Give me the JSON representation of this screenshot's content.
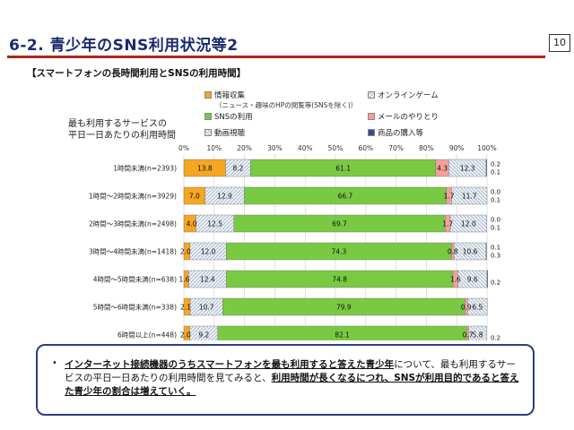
{
  "page": {
    "title": "6-2. 青少年のSNS利用状況等2",
    "number": "10"
  },
  "chart_title": "【スマートフォンの長時間利用とSNSの利用時間】",
  "colors": {
    "info": "#f5a623",
    "game": "#dfe8f2",
    "sns": "#7ac943",
    "mail": "#f4a09a",
    "video": "#dde6ee",
    "shop": "#2e4f8c",
    "title_rule": "#b0241c",
    "box_border": "#2c3f7a"
  },
  "note": {
    "bullet": "•",
    "part1": "インターネット接続機器のうちスマートフォンを最も利用すると答えた青少年",
    "part2": "について、最も利用するサービスの平日一日あたりの利用時間を見てみると、",
    "part3": "利用時間が長くなるにつれ、SNSが利用目的であると答えた青少年の割合は増えていく。"
  },
  "chart_data": {
    "type": "bar",
    "orientation": "horizontal-stacked-100",
    "title": "【スマートフォンの長時間利用とSNSの利用時間】",
    "ylabel": "最も利用するサービスの\n平日一日あたりの利用時間",
    "xlim": [
      0,
      100
    ],
    "xticks": [
      "0%",
      "10%",
      "20%",
      "30%",
      "40%",
      "50%",
      "60%",
      "70%",
      "80%",
      "90%",
      "100%"
    ],
    "grid": true,
    "legend_position": "top",
    "legend": {
      "info": "情報収集",
      "info_note": "（ニュース・趣味のHPの閲覧等(SNSを除く)）",
      "game": "オンラインゲーム",
      "sns": "SNSの利用",
      "mail": "メールのやりとり",
      "video": "動画視聴",
      "shop": "商品の購入等"
    },
    "categories": [
      "1時間未満(n=2393)",
      "1時間～2時間未満(n=3929)",
      "2時間～3時間未満(n=2498)",
      "3時間～4時間未満(n=1418)",
      "4時間～5時間未満(n=638)",
      "5時間～6時間未満(n=338)",
      "6時間以上(n=448)"
    ],
    "series": [
      {
        "key": "info",
        "name": "情報収集",
        "values": [
          13.8,
          7.0,
          4.0,
          2.0,
          1.6,
          2.1,
          2.0
        ]
      },
      {
        "key": "video",
        "name": "動画視聴",
        "values": [
          8.2,
          12.9,
          12.5,
          12.0,
          12.4,
          10.7,
          9.2
        ]
      },
      {
        "key": "sns",
        "name": "SNSの利用",
        "values": [
          61.1,
          66.7,
          69.7,
          74.3,
          74.8,
          79.9,
          82.1
        ]
      },
      {
        "key": "mail",
        "name": "メールのやりとり",
        "values": [
          4.3,
          1.7,
          1.7,
          0.8,
          1.6,
          0.9,
          0.7
        ]
      },
      {
        "key": "game",
        "name": "オンラインゲーム",
        "values": [
          12.3,
          11.7,
          12.0,
          10.6,
          9.6,
          6.5,
          5.8
        ]
      },
      {
        "key": "shop",
        "name": "商品の購入等",
        "values": [
          0.2,
          0.0,
          0.0,
          0.1,
          0.2,
          0.0,
          0.0
        ]
      }
    ],
    "labels": [
      {
        "info": "13.8",
        "video": "8.2",
        "sns": "61.1",
        "mail": "4.3",
        "game": "12.3",
        "right": [
          "0.2",
          "0.1"
        ]
      },
      {
        "info": "7.0",
        "video": "12.9",
        "sns": "66.7",
        "mail": "1.7",
        "game": "11.7",
        "right": [
          "0.0",
          "0.1"
        ]
      },
      {
        "info": "4.0",
        "video": "12.5",
        "sns": "69.7",
        "mail": "1.7",
        "game": "12.0",
        "right": [
          "0.0",
          "0.1"
        ]
      },
      {
        "info": "2.0",
        "video": "12.0",
        "sns": "74.3",
        "mail": "0.8",
        "game": "10.6",
        "right": [
          "0.1",
          "0.3"
        ]
      },
      {
        "info": "1.6",
        "video": "12.4",
        "sns": "74.8",
        "mail": "1.6",
        "game": "9.6",
        "right": [
          "0.2"
        ]
      },
      {
        "info": "2.1",
        "video": "10.7",
        "sns": "79.9",
        "mail": "0.9",
        "game": "6.5",
        "right": []
      },
      {
        "info": "2.0",
        "video": "9.2",
        "sns": "82.1",
        "mail": "0.7",
        "game": "5.8",
        "right": [
          "0.2"
        ]
      }
    ]
  }
}
